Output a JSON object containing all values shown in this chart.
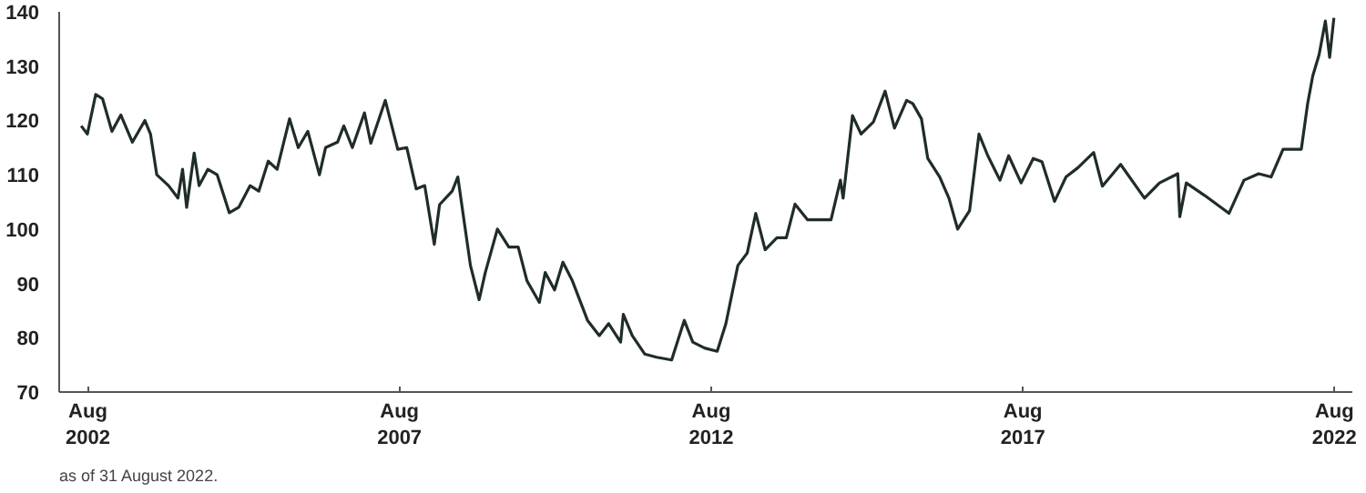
{
  "chart_data": {
    "type": "line",
    "x": [
      "2002-06-23",
      "2002-07-29",
      "2002-09-16",
      "2002-10-26",
      "2002-12-20",
      "2003-02-10",
      "2003-04-19",
      "2003-07-01",
      "2003-08-03",
      "2003-09-09",
      "2003-11-17",
      "2004-01-11",
      "2004-02-07",
      "2004-03-02",
      "2004-04-15",
      "2004-05-14",
      "2004-07-04",
      "2004-08-28",
      "2004-11-07",
      "2005-01-01",
      "2005-03-09",
      "2005-04-29",
      "2005-06-23",
      "2005-08-14",
      "2005-10-26",
      "2005-12-16",
      "2006-02-10",
      "2006-04-19",
      "2006-05-25",
      "2006-08-03",
      "2006-09-09",
      "2006-10-29",
      "2007-01-08",
      "2007-02-14",
      "2007-05-10",
      "2007-07-22",
      "2007-09-13",
      "2007-11-07",
      "2007-12-27",
      "2008-02-21",
      "2008-03-23",
      "2008-06-05",
      "2008-07-08",
      "2008-09-20",
      "2008-11-10",
      "2008-12-16",
      "2009-02-25",
      "2009-05-03",
      "2009-06-27",
      "2009-08-17",
      "2009-10-29",
      "2009-12-02",
      "2010-01-26",
      "2010-03-16",
      "2010-05-10",
      "2010-08-07",
      "2010-10-15",
      "2010-12-09",
      "2011-02-17",
      "2011-03-05",
      "2011-04-26",
      "2011-07-08",
      "2011-09-16",
      "2011-12-13",
      "2012-02-25",
      "2012-04-15",
      "2012-06-23",
      "2012-09-05",
      "2012-10-26",
      "2013-01-04",
      "2013-02-28",
      "2013-04-19",
      "2013-06-13",
      "2013-08-21",
      "2013-10-15",
      "2013-12-05",
      "2014-02-17",
      "2014-07-04",
      "2014-08-28",
      "2014-09-13",
      "2014-11-07",
      "2014-12-27",
      "2015-03-09",
      "2015-05-17",
      "2015-07-11",
      "2015-09-20",
      "2015-10-26",
      "2015-12-16",
      "2016-01-22",
      "2016-04-01",
      "2016-05-25",
      "2016-07-15",
      "2016-09-23",
      "2016-11-17",
      "2017-01-08",
      "2017-03-20",
      "2017-05-10",
      "2017-07-22",
      "2017-10-01",
      "2017-11-21",
      "2018-02-03",
      "2018-04-11",
      "2018-06-20",
      "2018-09-20",
      "2018-11-10",
      "2019-02-25",
      "2019-07-15",
      "2019-10-11",
      "2020-01-26",
      "2020-02-07",
      "2020-03-16",
      "2020-07-01",
      "2020-11-21",
      "2021-02-17",
      "2021-05-14",
      "2021-07-26",
      "2021-10-04",
      "2022-01-19",
      "2022-02-25",
      "2022-03-27",
      "2022-05-03",
      "2022-06-09",
      "2022-07-04",
      "2022-07-29"
    ],
    "series": [
      {
        "color": "#1f2d26",
        "values": [
          119,
          117.5,
          124.8,
          124,
          118,
          121,
          116,
          120,
          117.5,
          110,
          108,
          105.7,
          111,
          104,
          114,
          108,
          111,
          110,
          103,
          104,
          108,
          107,
          112.5,
          111,
          120.3,
          115,
          118,
          110,
          115,
          116,
          119,
          115,
          121.4,
          115.8,
          123.7,
          114.7,
          115,
          107.4,
          108,
          97.2,
          104.5,
          107,
          109.6,
          93.3,
          87,
          92,
          100,
          96.7,
          96.7,
          90.5,
          86.5,
          92,
          88.8,
          93.9,
          90.5,
          83.2,
          80.4,
          82.6,
          79.2,
          84.3,
          80.4,
          77,
          76.4,
          75.9,
          83.2,
          79.2,
          78.1,
          77.5,
          82.6,
          93.3,
          95.6,
          102.9,
          96.2,
          98.4,
          98.4,
          104.6,
          101.7,
          101.7,
          109,
          105.7,
          120.9,
          117.5,
          119.7,
          125.4,
          118.6,
          123.7,
          123.1,
          120.3,
          113,
          109.6,
          105.7,
          100,
          103.4,
          117.5,
          113.5,
          109,
          113.5,
          108.5,
          113,
          112.4,
          105.1,
          109.6,
          111.3,
          114.1,
          107.9,
          111.9,
          105.7,
          108.5,
          110.2,
          102.3,
          108.5,
          106.2,
          102.9,
          109,
          110.2,
          109.6,
          114.7,
          114.7,
          123.1,
          128.2,
          132.1,
          138.3,
          131.6,
          138.9
        ]
      }
    ],
    "xlim": [
      "2002-02-14",
      "2022-11-14"
    ],
    "xticks": [
      {
        "value": "2002-08-01",
        "label": "Aug\n2002"
      },
      {
        "value": "2007-08-01",
        "label": "Aug\n2007"
      },
      {
        "value": "2012-08-01",
        "label": "Aug\n2012"
      },
      {
        "value": "2017-08-01",
        "label": "Aug\n2017"
      },
      {
        "value": "2022-08-01",
        "label": "Aug\n2022"
      }
    ],
    "ylim": [
      70,
      140
    ],
    "yticks": [
      70,
      80,
      90,
      100,
      110,
      120,
      130,
      140
    ],
    "grid": false,
    "marker": "none",
    "line_style": "solid",
    "annotations": [
      "as of 31 August 2022."
    ]
  }
}
